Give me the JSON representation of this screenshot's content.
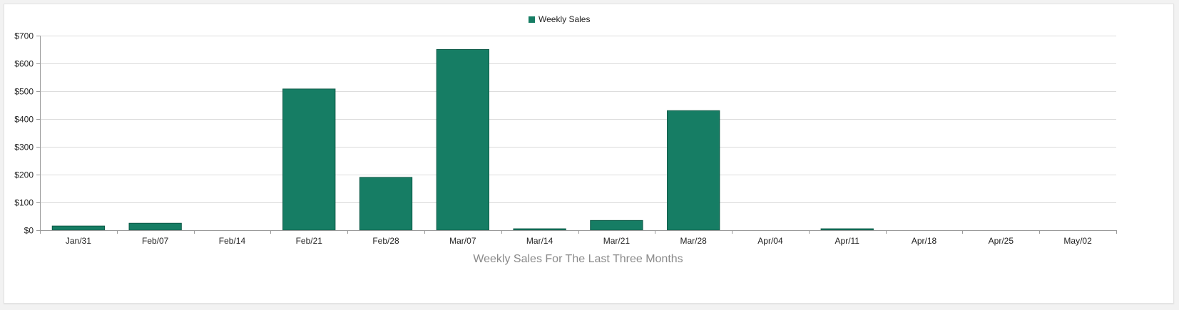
{
  "chart_data": {
    "type": "bar",
    "title": "",
    "xlabel": "Weekly Sales For The Last Three Months",
    "ylabel": "",
    "categories": [
      "Jan/31",
      "Feb/07",
      "Feb/14",
      "Feb/21",
      "Feb/28",
      "Mar/07",
      "Mar/14",
      "Mar/21",
      "Mar/28",
      "Apr/04",
      "Apr/11",
      "Apr/18",
      "Apr/25",
      "May/02"
    ],
    "series": [
      {
        "name": "Weekly Sales",
        "color": "#167d64",
        "values": [
          15,
          25,
          0,
          508,
          190,
          650,
          5,
          35,
          430,
          0,
          5,
          0,
          0,
          0
        ]
      }
    ],
    "ylim": [
      0,
      700
    ],
    "yticks": [
      0,
      100,
      200,
      300,
      400,
      500,
      600,
      700
    ],
    "ytick_labels": [
      "$0",
      "$100",
      "$200",
      "$300",
      "$400",
      "$500",
      "$600",
      "$700"
    ],
    "grid": true,
    "legend_position": "top-center"
  }
}
